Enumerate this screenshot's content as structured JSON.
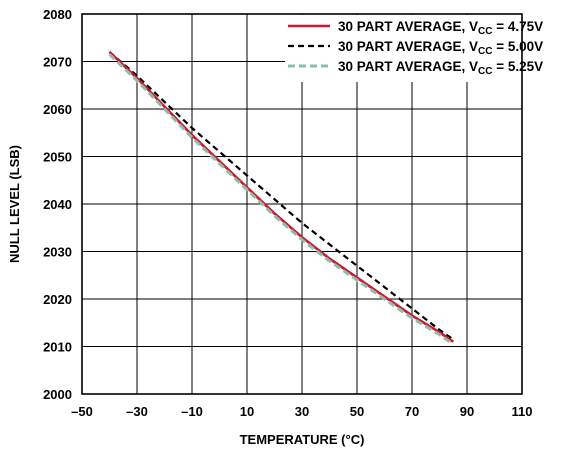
{
  "chart_data": {
    "type": "line",
    "xlabel": "TEMPERATURE (°C)",
    "ylabel": "NULL LEVEL (LSB)",
    "xlim": [
      -50,
      110
    ],
    "ylim": [
      2000,
      2080
    ],
    "x_ticks": [
      -50,
      -30,
      -10,
      10,
      30,
      50,
      70,
      90,
      110
    ],
    "y_ticks": [
      2000,
      2010,
      2020,
      2030,
      2040,
      2050,
      2060,
      2070,
      2080
    ],
    "x_tick_labels": [
      "–50",
      "–30",
      "–10",
      "10",
      "30",
      "50",
      "70",
      "90",
      "110"
    ],
    "y_tick_labels": [
      "2000",
      "2010",
      "2020",
      "2030",
      "2040",
      "2050",
      "2060",
      "2070",
      "2080"
    ],
    "grid": true,
    "legend_position": "top-right",
    "series": [
      {
        "name": "30 PART AVERAGE, V",
        "name_sub": "CC",
        "name_suffix": " = 4.75V",
        "color": "#cc1933",
        "dash": "solid",
        "x": [
          -40,
          -30,
          -20,
          -10,
          0,
          10,
          20,
          30,
          40,
          50,
          60,
          70,
          80,
          85
        ],
        "y": [
          2072,
          2066.5,
          2060.5,
          2054.5,
          2049,
          2043.5,
          2038,
          2033,
          2028.5,
          2024.5,
          2020.5,
          2016.5,
          2013,
          2011
        ]
      },
      {
        "name": "30 PART AVERAGE, V",
        "name_sub": "CC",
        "name_suffix": " = 5.00V",
        "color": "#000000",
        "dash": "dashed",
        "x": [
          -40,
          -30,
          -20,
          -10,
          0,
          10,
          20,
          30,
          40,
          50,
          60,
          70,
          80,
          85
        ],
        "y": [
          2072,
          2067,
          2061.5,
          2056,
          2051,
          2046,
          2041,
          2036,
          2031.5,
          2027,
          2022.5,
          2018,
          2013.5,
          2011.5
        ]
      },
      {
        "name": "30 PART AVERAGE, V",
        "name_sub": "CC",
        "name_suffix": " = 5.25V",
        "color": "#8bbfa8",
        "dash": "dashed",
        "x": [
          -40,
          -30,
          -20,
          -10,
          0,
          10,
          20,
          30,
          40,
          50,
          60,
          70,
          80,
          85
        ],
        "y": [
          2071.5,
          2066,
          2060,
          2054,
          2048.5,
          2043,
          2037.5,
          2032.5,
          2028,
          2024,
          2020,
          2016,
          2012.5,
          2010.5
        ]
      }
    ]
  }
}
